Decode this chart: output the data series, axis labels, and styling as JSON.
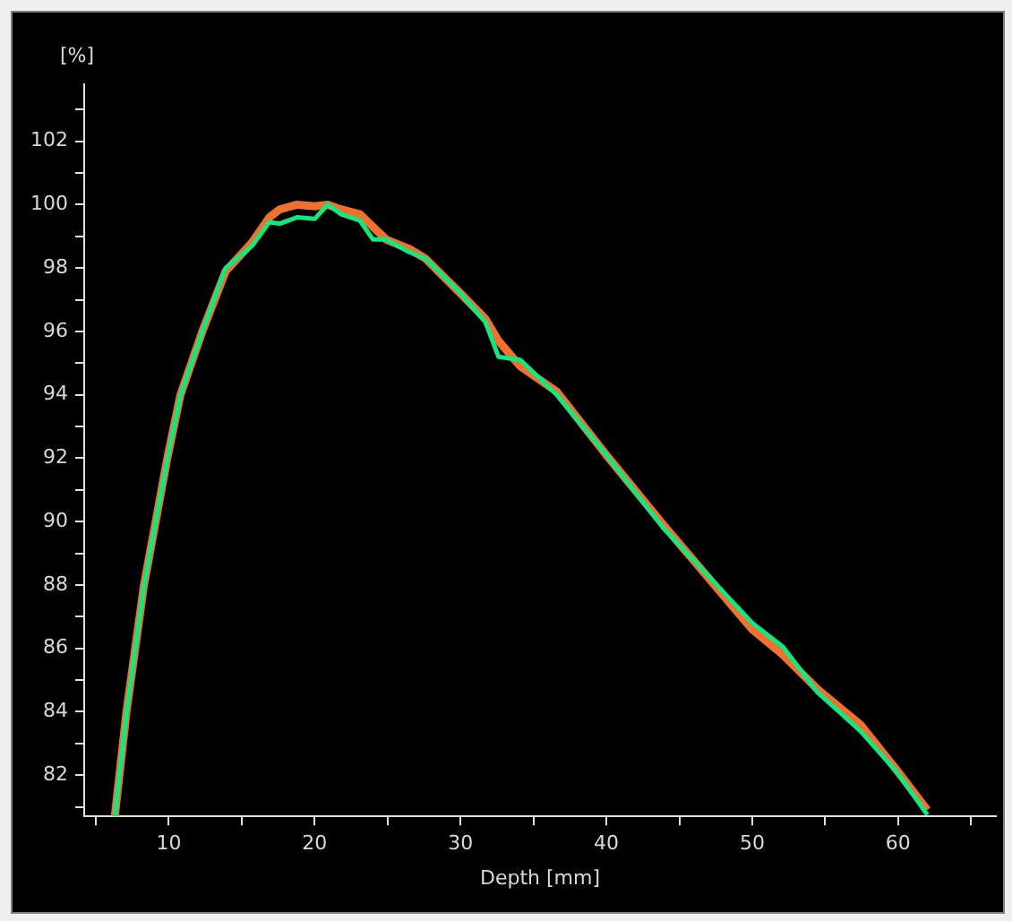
{
  "chart_data": {
    "type": "line",
    "xlabel": "Depth [mm]",
    "ylabel": "[%]",
    "x": [
      6.3,
      7.1,
      8.3,
      9.9,
      10.8,
      12.3,
      13.9,
      15.7,
      16.9,
      17.6,
      18.8,
      20,
      20.9,
      21.8,
      23.1,
      24,
      24.9,
      26.5,
      27.6,
      30,
      31.7,
      32.6,
      34.1,
      36.6,
      40,
      43.9,
      50,
      52.1,
      54.5,
      57.4,
      60,
      62
    ],
    "series": [
      {
        "color": "#f07030",
        "values": [
          80.7,
          84,
          88,
          92,
          94,
          96,
          97.9,
          98.8,
          99.6,
          99.85,
          100,
          99.95,
          100,
          99.85,
          99.7,
          99.3,
          98.9,
          98.6,
          98.3,
          97.2,
          96.4,
          95.7,
          94.9,
          94.1,
          92.1,
          89.9,
          86.6,
          85.8,
          84.7,
          83.6,
          82.1,
          80.9
        ]
      },
      {
        "color": "#10e880",
        "values": [
          80.7,
          84,
          88,
          92,
          94,
          96,
          98,
          98.7,
          99.45,
          99.4,
          99.6,
          99.55,
          100,
          99.7,
          99.5,
          98.9,
          98.9,
          98.5,
          98.3,
          97.2,
          96.3,
          95.2,
          95.1,
          94,
          92.1,
          89.8,
          86.8,
          86.05,
          84.6,
          83.4,
          82.05,
          80.75
        ]
      }
    ],
    "xlim": [
      4.2,
      66.7
    ],
    "ylim": [
      80.7,
      103.8
    ],
    "xticks": [
      {
        "value": 5,
        "label": null
      },
      10,
      {
        "value": 15,
        "label": null
      },
      20,
      {
        "value": 25,
        "label": null
      },
      30,
      {
        "value": 35,
        "label": null
      },
      40,
      {
        "value": 45,
        "label": null
      },
      50,
      {
        "value": 55,
        "label": null
      },
      60,
      {
        "value": 65,
        "label": null
      }
    ],
    "yticks": [
      {
        "value": 81,
        "label": null
      },
      82,
      {
        "value": 83,
        "label": null
      },
      84,
      {
        "value": 85,
        "label": null
      },
      86,
      {
        "value": 87,
        "label": null
      },
      88,
      {
        "value": 89,
        "label": null
      },
      90,
      {
        "value": 91,
        "label": null
      },
      92,
      {
        "value": 93,
        "label": null
      },
      94,
      {
        "value": 95,
        "label": null
      },
      96,
      {
        "value": 97,
        "label": null
      },
      98,
      {
        "value": 99,
        "label": null
      },
      100,
      {
        "value": 101,
        "label": null
      },
      102,
      {
        "value": 103,
        "label": null
      }
    ],
    "grid": false,
    "legend": false,
    "marker": "none",
    "line_style": "solid"
  }
}
